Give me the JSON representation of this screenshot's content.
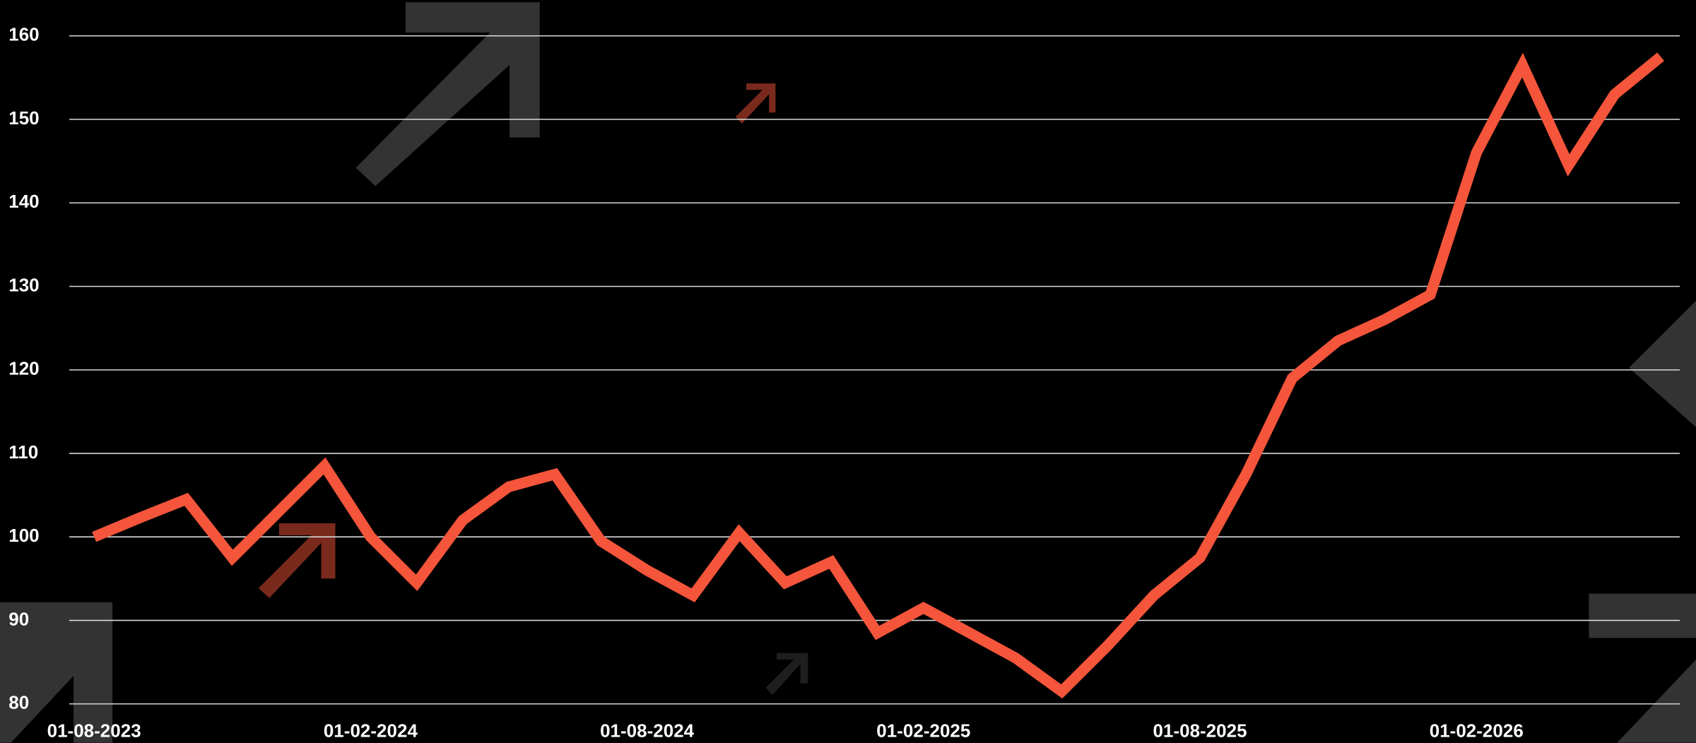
{
  "chart_data": {
    "type": "line",
    "categories": [
      "01-08-2023",
      null,
      null,
      null,
      null,
      null,
      "01-02-2024",
      null,
      null,
      null,
      null,
      null,
      "01-08-2024",
      null,
      null,
      null,
      null,
      null,
      "01-02-2025",
      null,
      null,
      null,
      null,
      null,
      "01-08-2025",
      null,
      null,
      null,
      null,
      null,
      "01-02-2026",
      null,
      null,
      null,
      null
    ],
    "values": [
      100,
      102.3,
      104.5,
      97.5,
      103,
      108.5,
      100,
      94.5,
      102,
      106,
      107.5,
      99.5,
      96,
      93,
      100.5,
      94.5,
      97,
      88.5,
      91.5,
      88.5,
      85.5,
      81.5,
      87,
      93,
      97.5,
      107.5,
      119,
      123.5,
      126,
      129,
      146,
      156.5,
      144.5,
      153,
      157.5
    ],
    "color": "#f4553b",
    "ylim": [
      80,
      160
    ],
    "yticks": [
      80,
      90,
      100,
      110,
      120,
      130,
      140,
      150,
      160
    ],
    "grid": true
  }
}
